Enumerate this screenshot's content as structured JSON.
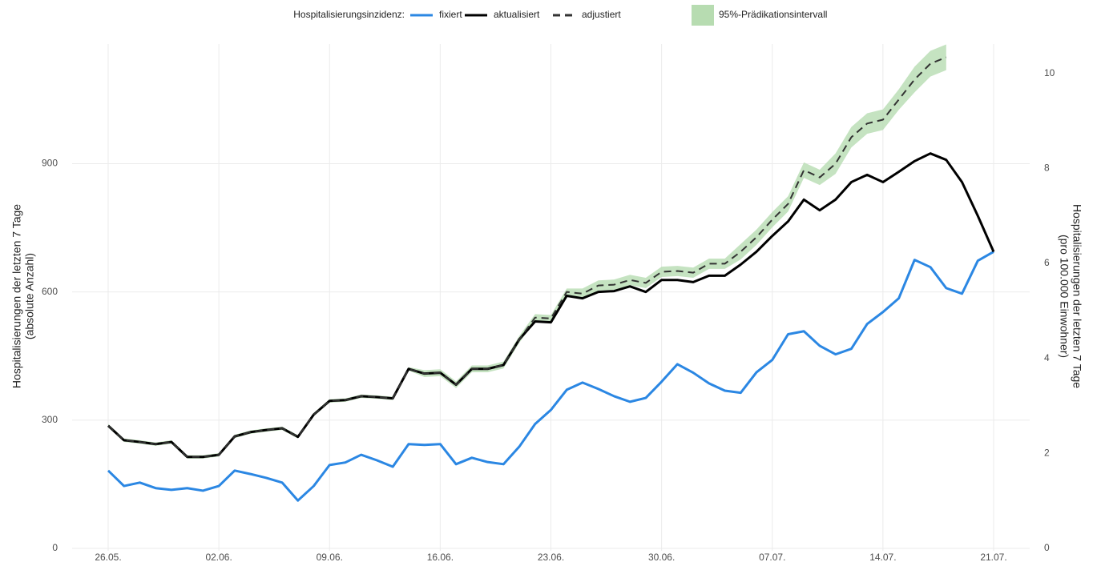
{
  "chart_data": {
    "type": "line",
    "legend_title": "Hospitalisierungsinzidenz:",
    "y_label": "Hospitalisierungen der letzten 7 Tage",
    "y_sublabel": "(absolute Anzahl)",
    "y2_label": "Hospitalisierungen der letzten 7 Tage",
    "y2_sublabel": "(pro 100.000 Einwohner)",
    "categories": [
      "26.05.",
      null,
      null,
      null,
      null,
      null,
      null,
      "02.06.",
      null,
      null,
      null,
      null,
      null,
      null,
      "09.06.",
      null,
      null,
      null,
      null,
      null,
      null,
      "16.06.",
      null,
      null,
      null,
      null,
      null,
      null,
      "23.06.",
      null,
      null,
      null,
      null,
      null,
      null,
      "30.06.",
      null,
      null,
      null,
      null,
      null,
      null,
      "07.07.",
      null,
      null,
      null,
      null,
      null,
      null,
      "14.07.",
      null,
      null,
      null,
      null,
      null,
      null,
      "21.07."
    ],
    "ylim": [
      0,
      1180
    ],
    "yticks": [
      0,
      300,
      600,
      900
    ],
    "y2lim": [
      0,
      10.62
    ],
    "y2ticks": [
      0,
      2,
      4,
      6,
      8,
      10
    ],
    "grid": true,
    "series": [
      {
        "name": "fixiert",
        "color": "#2b87e3",
        "dash": false,
        "values": [
          182,
          146,
          154,
          141,
          137,
          141,
          135,
          146,
          182,
          174,
          165,
          154,
          112,
          146,
          195,
          201,
          219,
          206,
          191,
          244,
          242,
          244,
          197,
          212,
          202,
          197,
          238,
          291,
          324,
          371,
          388,
          373,
          356,
          343,
          352,
          390,
          431,
          411,
          386,
          369,
          364,
          412,
          441,
          501,
          508,
          474,
          454,
          467,
          525,
          553,
          585,
          675,
          658,
          609,
          596,
          673,
          694
        ]
      },
      {
        "name": "aktualisiert",
        "color": "#000000",
        "dash": false,
        "values": [
          287,
          253,
          249,
          244,
          249,
          214,
          214,
          219,
          262,
          272,
          277,
          281,
          261,
          313,
          345,
          347,
          356,
          354,
          351,
          420,
          409,
          411,
          383,
          420,
          420,
          429,
          489,
          531,
          529,
          591,
          585,
          600,
          602,
          613,
          600,
          628,
          628,
          623,
          638,
          638,
          664,
          694,
          731,
          765,
          816,
          791,
          816,
          857,
          874,
          857,
          881,
          906,
          924,
          909,
          857,
          778,
          694
        ]
      },
      {
        "name": "adjustiert",
        "color": "#333333",
        "dash": true,
        "values": [
          287,
          253,
          249,
          244,
          249,
          214,
          214,
          219,
          262,
          272,
          277,
          281,
          261,
          313,
          345,
          347,
          356,
          354,
          351,
          420,
          409,
          411,
          383,
          420,
          420,
          429,
          489,
          540,
          538,
          600,
          596,
          615,
          617,
          628,
          621,
          647,
          649,
          645,
          666,
          666,
          694,
          728,
          769,
          806,
          885,
          868,
          900,
          962,
          994,
          1003,
          1050,
          1097,
          1134,
          1149,
          null,
          null,
          null
        ]
      }
    ],
    "band": {
      "name": "95%-Prädikationsintervall",
      "color": "#b7dcb1",
      "lower": [
        283,
        249,
        245,
        240,
        245,
        210,
        210,
        215,
        258,
        268,
        273,
        277,
        257,
        309,
        341,
        343,
        352,
        350,
        347,
        416,
        401,
        403,
        375,
        412,
        412,
        421,
        481,
        532,
        530,
        592,
        584,
        603,
        605,
        616,
        609,
        635,
        637,
        633,
        654,
        654,
        676,
        710,
        751,
        788,
        867,
        850,
        876,
        938,
        970,
        979,
        1026,
        1067,
        1104,
        1119,
        null,
        null,
        null
      ],
      "upper": [
        291,
        257,
        253,
        248,
        253,
        218,
        218,
        223,
        266,
        276,
        281,
        285,
        265,
        317,
        349,
        351,
        360,
        358,
        355,
        424,
        417,
        419,
        391,
        428,
        428,
        437,
        497,
        548,
        546,
        608,
        608,
        627,
        629,
        640,
        633,
        659,
        661,
        657,
        678,
        678,
        712,
        746,
        787,
        824,
        903,
        886,
        924,
        986,
        1018,
        1027,
        1074,
        1127,
        1164,
        1179,
        null,
        null,
        null
      ]
    }
  }
}
